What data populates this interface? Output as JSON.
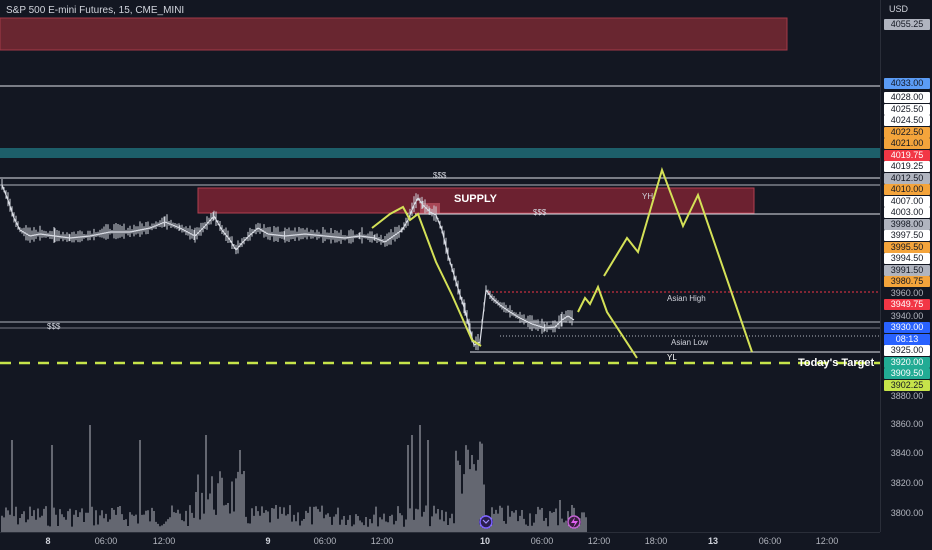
{
  "header": {
    "title": "S&P 500 E-mini Futures, 15, CME_MINI"
  },
  "axis": {
    "currency": "USD"
  },
  "colors": {
    "up": "#d1d4dc",
    "down": "#d1d4dc",
    "projection": "#d4e157",
    "supply": "#8b2635",
    "target": "#c6e44a"
  },
  "annotations": {
    "supply": "SUPPLY",
    "yh": "YH",
    "yl": "YL",
    "asian_high": "Asian High",
    "asian_low": "Asian Low",
    "liquidity_top": "$$$",
    "liquidity_mid": "$$$",
    "liquidity_left": "$$$",
    "target": "Today's Target"
  },
  "price_labels": [
    {
      "text": "4055.25",
      "bg": "#b0b4bf",
      "fg": "#131722",
      "price": 4055.25
    },
    {
      "text": "4033.00",
      "bg": "#5b9cf6",
      "fg": "#131722",
      "price": 4033.0
    },
    {
      "text": "4028.00",
      "bg": "#ffffff",
      "fg": "#131722",
      "price": 4028.0
    },
    {
      "text": "4025.50",
      "bg": "#ffffff",
      "fg": "#131722",
      "price": 4025.5
    },
    {
      "text": "4024.50",
      "bg": "#ffffff",
      "fg": "#131722",
      "price": 4024.5
    },
    {
      "text": "4022.50",
      "bg": "#f4a43b",
      "fg": "#131722",
      "price": 4022.5
    },
    {
      "text": "4021.00",
      "bg": "#f4a43b",
      "fg": "#131722",
      "price": 4021.0
    },
    {
      "text": "4019.75",
      "bg": "#f23645",
      "fg": "#ffffff",
      "price": 4019.75
    },
    {
      "text": "4019.25",
      "bg": "#ffffff",
      "fg": "#131722",
      "price": 4019.25
    },
    {
      "text": "4012.50",
      "bg": "#b0b4bf",
      "fg": "#131722",
      "price": 4012.5
    },
    {
      "text": "4010.00",
      "bg": "#f4a43b",
      "fg": "#131722",
      "price": 4010.0
    },
    {
      "text": "4007.00",
      "bg": "#ffffff",
      "fg": "#131722",
      "price": 4007.0
    },
    {
      "text": "4003.00",
      "bg": "#ffffff",
      "fg": "#131722",
      "price": 4003.0
    },
    {
      "text": "3998.00",
      "bg": "#b0b4bf",
      "fg": "#131722",
      "price": 3998.0
    },
    {
      "text": "3997.50",
      "bg": "#ffffff",
      "fg": "#131722",
      "price": 3997.5
    },
    {
      "text": "3995.50",
      "bg": "#f4a43b",
      "fg": "#131722",
      "price": 3995.5
    },
    {
      "text": "3994.50",
      "bg": "#ffffff",
      "fg": "#131722",
      "price": 3994.5
    },
    {
      "text": "3991.50",
      "bg": "#b0b4bf",
      "fg": "#131722",
      "price": 3991.5
    },
    {
      "text": "3980.75",
      "bg": "#f4a43b",
      "fg": "#131722",
      "price": 3980.75
    },
    {
      "text": "3960.00",
      "bg": "transparent",
      "fg": "#b2b5be",
      "price": 3960.0
    },
    {
      "text": "3949.75",
      "bg": "#f23645",
      "fg": "#ffffff",
      "price": 3949.75
    },
    {
      "text": "3940.00",
      "bg": "transparent",
      "fg": "#b2b5be",
      "price": 3940.0
    },
    {
      "text": "3930.00",
      "bg": "#2962ff",
      "fg": "#ffffff",
      "price": 3930.0
    },
    {
      "text": "08:13",
      "bg": "#2962ff",
      "fg": "#ffffff",
      "price": 3929.0
    },
    {
      "text": "3925.00",
      "bg": "#ffffff",
      "fg": "#131722",
      "price": 3925.0
    },
    {
      "text": "3920.00",
      "bg": "#22ab94",
      "fg": "#ffffff",
      "price": 3920.0
    },
    {
      "text": "3909.50",
      "bg": "#22ab94",
      "fg": "#ffffff",
      "price": 3909.5
    },
    {
      "text": "3902.25",
      "bg": "#c6e44a",
      "fg": "#131722",
      "price": 3902.25
    },
    {
      "text": "3880.00",
      "bg": "transparent",
      "fg": "#b2b5be",
      "price": 3880.0
    },
    {
      "text": "3860.00",
      "bg": "transparent",
      "fg": "#b2b5be",
      "price": 3860.0
    },
    {
      "text": "3840.00",
      "bg": "transparent",
      "fg": "#b2b5be",
      "price": 3840.0
    },
    {
      "text": "3820.00",
      "bg": "transparent",
      "fg": "#b2b5be",
      "price": 3820.0
    },
    {
      "text": "3800.00",
      "bg": "transparent",
      "fg": "#b2b5be",
      "price": 3800.0
    }
  ],
  "time_labels": [
    {
      "text": "8",
      "t": "8 00:00"
    },
    {
      "text": "06:00",
      "t": "8 06:00"
    },
    {
      "text": "12:00",
      "t": "8 12:00"
    },
    {
      "text": "9",
      "t": "9 00:00"
    },
    {
      "text": "06:00",
      "t": "9 06:00"
    },
    {
      "text": "12:00",
      "t": "9 12:00"
    },
    {
      "text": "10",
      "t": "10 00:00"
    },
    {
      "text": "06:00",
      "t": "10 06:00"
    },
    {
      "text": "12:00",
      "t": "10 12:00"
    },
    {
      "text": "18:00",
      "t": "10 18:00"
    },
    {
      "text": "13",
      "t": "13 00:00"
    },
    {
      "text": "06:00",
      "t": "13 06:00"
    },
    {
      "text": "12:00",
      "t": "13 12:00"
    }
  ]
}
